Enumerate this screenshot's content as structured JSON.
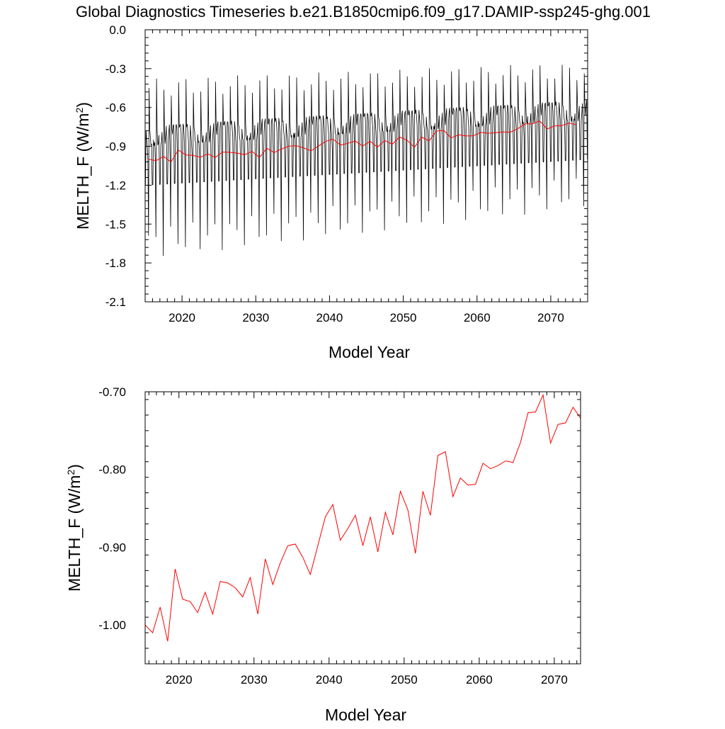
{
  "figure": {
    "title": "Global Diagnostics Timeseries b.e21.B1850cmip6.f09_g17.DAMIP-ssp245-ghg.001"
  },
  "chart_data": [
    {
      "type": "line",
      "xlabel": "Model Year",
      "ylabel": "MELTH_F (W/m",
      "ylabel_sup": "2",
      "ylabel_end": ")",
      "xlim": [
        2015,
        2075
      ],
      "ylim": [
        -2.1,
        0.0
      ],
      "xticks": [
        2020,
        2030,
        2040,
        2050,
        2060,
        2070
      ],
      "yticks": [
        0.0,
        -0.3,
        -0.6,
        -0.9,
        -1.2,
        -1.5,
        -1.8,
        -2.1
      ],
      "ytick_labels": [
        "0.0",
        "-0.3",
        "-0.6",
        "-0.9",
        "-1.2",
        "-1.5",
        "-1.8",
        "-2.1"
      ],
      "series": [
        {
          "kind": "monthly",
          "color": "#000000",
          "start_year": 2015,
          "years": 60,
          "peak_start": -0.45,
          "peak_end": -0.32,
          "trough_start": -1.65,
          "trough_end": -1.25,
          "mid_start": -0.82,
          "mid_end": -0.62
        },
        {
          "kind": "annual",
          "color": "#ff0000",
          "x": [
            2015.5,
            2016.5,
            2017.5,
            2018.5,
            2019.5,
            2020.5,
            2021.5,
            2022.5,
            2023.5,
            2024.5,
            2025.5,
            2026.5,
            2027.5,
            2028.5,
            2029.5,
            2030.5,
            2031.5,
            2032.5,
            2033.5,
            2034.5,
            2035.5,
            2036.5,
            2037.5,
            2038.5,
            2039.5,
            2040.5,
            2041.5,
            2042.5,
            2043.5,
            2044.5,
            2045.5,
            2046.5,
            2047.5,
            2048.5,
            2049.5,
            2050.5,
            2051.5,
            2052.5,
            2053.5,
            2054.5,
            2055.5,
            2056.5,
            2057.5,
            2058.5,
            2059.5,
            2060.5,
            2061.5,
            2062.5,
            2063.5,
            2064.5,
            2065.5,
            2066.5,
            2067.5,
            2068.5,
            2069.5,
            2070.5,
            2071.5,
            2072.5,
            2073.5
          ],
          "values": [
            -1.0,
            -1.01,
            -0.977,
            -1.021,
            -0.928,
            -0.967,
            -0.97,
            -0.984,
            -0.958,
            -0.986,
            -0.944,
            -0.946,
            -0.952,
            -0.964,
            -0.939,
            -0.986,
            -0.915,
            -0.948,
            -0.92,
            -0.898,
            -0.896,
            -0.913,
            -0.935,
            -0.898,
            -0.861,
            -0.845,
            -0.891,
            -0.876,
            -0.859,
            -0.898,
            -0.861,
            -0.906,
            -0.855,
            -0.884,
            -0.828,
            -0.852,
            -0.908,
            -0.828,
            -0.859,
            -0.782,
            -0.777,
            -0.835,
            -0.811,
            -0.82,
            -0.819,
            -0.792,
            -0.799,
            -0.795,
            -0.789,
            -0.791,
            -0.765,
            -0.727,
            -0.726,
            -0.704,
            -0.766,
            -0.742,
            -0.74,
            -0.72,
            -0.734
          ]
        }
      ]
    },
    {
      "type": "line",
      "xlabel": "Model Year",
      "ylabel": "MELTH_F (W/m",
      "ylabel_sup": "2",
      "ylabel_end": ")",
      "xlim": [
        2015.5,
        2073.5
      ],
      "ylim": [
        -1.05,
        -0.7
      ],
      "xticks": [
        2020,
        2030,
        2040,
        2050,
        2060,
        2070
      ],
      "yticks": [
        -0.7,
        -0.8,
        -0.9,
        -1.0
      ],
      "ytick_labels": [
        "-0.70",
        "-0.80",
        "-0.90",
        "-1.00"
      ],
      "series": [
        {
          "kind": "annual",
          "color": "#ff0000",
          "x": [
            2015.5,
            2016.5,
            2017.5,
            2018.5,
            2019.5,
            2020.5,
            2021.5,
            2022.5,
            2023.5,
            2024.5,
            2025.5,
            2026.5,
            2027.5,
            2028.5,
            2029.5,
            2030.5,
            2031.5,
            2032.5,
            2033.5,
            2034.5,
            2035.5,
            2036.5,
            2037.5,
            2038.5,
            2039.5,
            2040.5,
            2041.5,
            2042.5,
            2043.5,
            2044.5,
            2045.5,
            2046.5,
            2047.5,
            2048.5,
            2049.5,
            2050.5,
            2051.5,
            2052.5,
            2053.5,
            2054.5,
            2055.5,
            2056.5,
            2057.5,
            2058.5,
            2059.5,
            2060.5,
            2061.5,
            2062.5,
            2063.5,
            2064.5,
            2065.5,
            2066.5,
            2067.5,
            2068.5,
            2069.5,
            2070.5,
            2071.5,
            2072.5,
            2073.5
          ],
          "values": [
            -1.0,
            -1.01,
            -0.977,
            -1.021,
            -0.928,
            -0.967,
            -0.97,
            -0.984,
            -0.958,
            -0.986,
            -0.944,
            -0.946,
            -0.952,
            -0.964,
            -0.939,
            -0.986,
            -0.915,
            -0.948,
            -0.92,
            -0.898,
            -0.896,
            -0.913,
            -0.935,
            -0.898,
            -0.861,
            -0.845,
            -0.891,
            -0.876,
            -0.859,
            -0.898,
            -0.861,
            -0.906,
            -0.855,
            -0.884,
            -0.828,
            -0.852,
            -0.908,
            -0.828,
            -0.859,
            -0.782,
            -0.777,
            -0.835,
            -0.811,
            -0.82,
            -0.819,
            -0.792,
            -0.799,
            -0.795,
            -0.789,
            -0.791,
            -0.765,
            -0.727,
            -0.726,
            -0.704,
            -0.766,
            -0.742,
            -0.74,
            -0.72,
            -0.734
          ]
        }
      ]
    }
  ]
}
